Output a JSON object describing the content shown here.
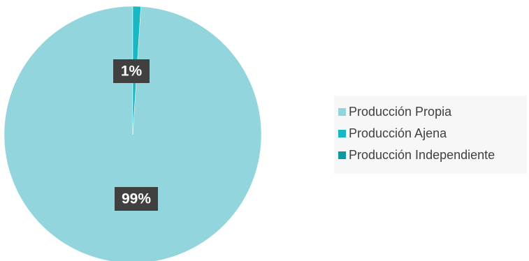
{
  "chart_data": {
    "type": "pie",
    "categories": [
      "Producción Propia",
      "Producción Ajena",
      "Producción Independiente"
    ],
    "values": [
      99,
      1,
      0
    ],
    "data_labels": [
      "99%",
      "1%",
      ""
    ],
    "colors": [
      "#93d5dc",
      "#17b8c2",
      "#0f9aa0"
    ],
    "title": "",
    "legend_position": "right"
  }
}
